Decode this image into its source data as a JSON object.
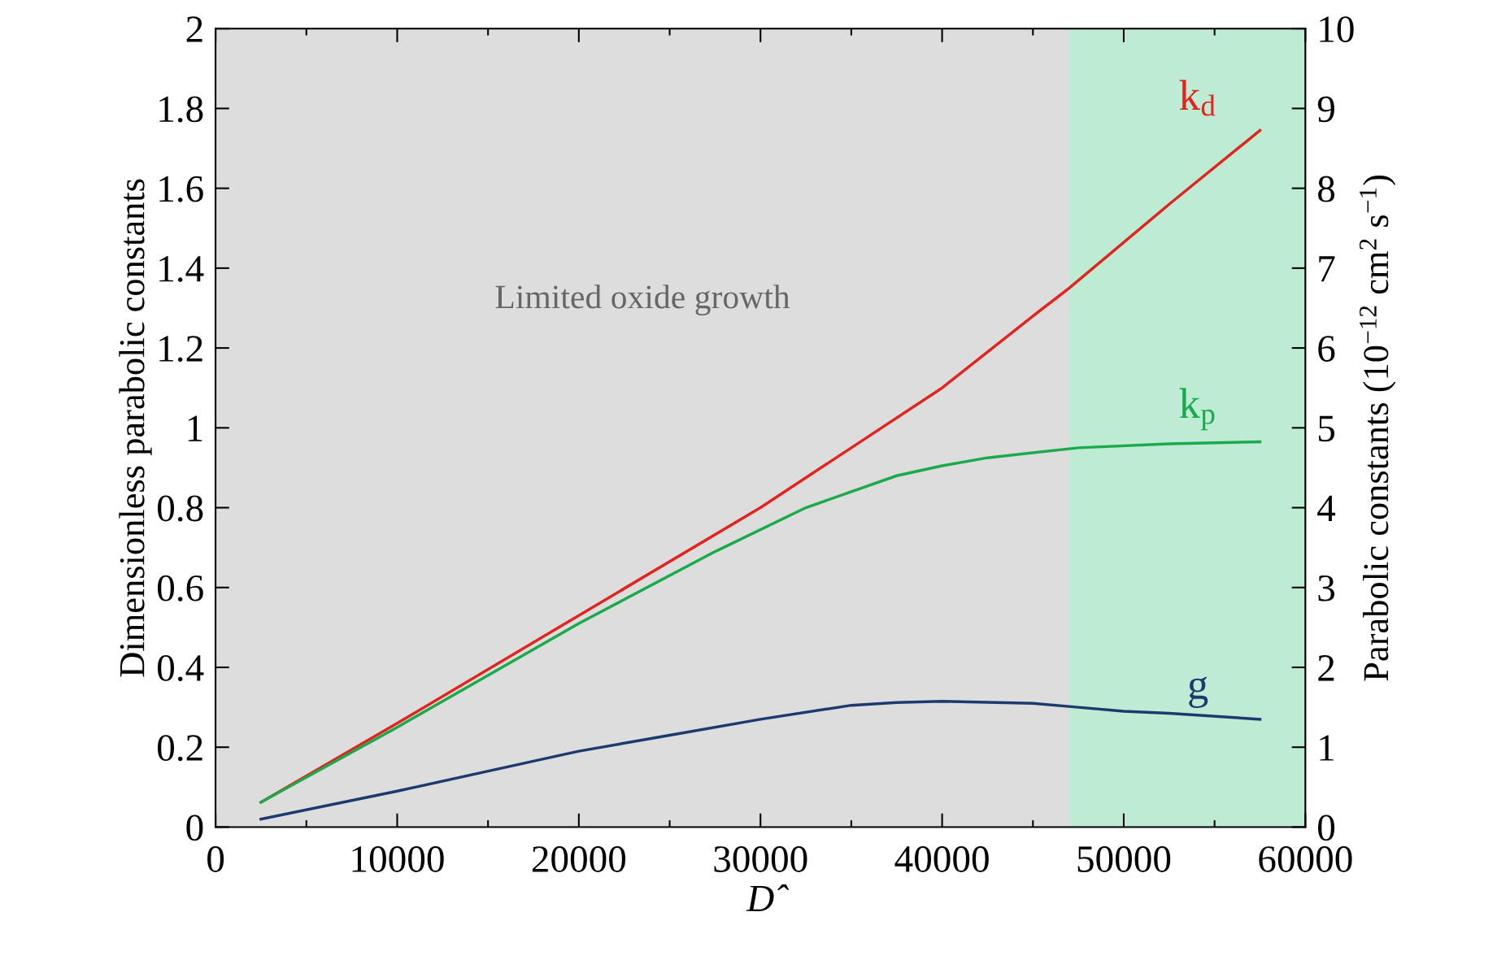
{
  "chart_data": {
    "type": "line",
    "xlabel": "D̂",
    "ylabel": "Dimensionless parabolic constants",
    "y2label": "Parabolic constants (10$^{−12}$ cm$^{2}$ s$^{−1}$)",
    "xlim": [
      0,
      60000
    ],
    "xticks": [
      0,
      10000,
      20000,
      30000,
      40000,
      50000,
      60000
    ],
    "ylim": [
      0,
      2
    ],
    "yticks": [
      0,
      0.2,
      0.4,
      0.6,
      0.8,
      1,
      1.2,
      1.4,
      1.6,
      1.8,
      2
    ],
    "y2lim": [
      0,
      10
    ],
    "y2ticks": [
      0,
      1,
      2,
      3,
      4,
      5,
      6,
      7,
      8,
      9,
      10
    ],
    "grid": false,
    "legend": false,
    "marker": "none",
    "line_style": "solid",
    "bands": [
      {
        "axis": "x",
        "from": 0,
        "to": 47000,
        "label": "Limited oxide growth",
        "color": "#dddddd"
      },
      {
        "axis": "x",
        "from": 47000,
        "to": 60000,
        "color": "#bdebd3"
      }
    ],
    "series": [
      {
        "name": "k$_{d}$",
        "color": "#e0251f",
        "x": [
          2500,
          10000,
          20000,
          30000,
          35000,
          40000,
          45000,
          47000,
          52500,
          57500
        ],
        "values": [
          0.062,
          0.26,
          0.53,
          0.8,
          0.95,
          1.1,
          1.28,
          1.35,
          1.56,
          1.745
        ]
      },
      {
        "name": "k$_{p}$",
        "color": "#1aaa4c",
        "x": [
          2500,
          10000,
          20000,
          27500,
          32500,
          37500,
          40000,
          42500,
          47500,
          52500,
          57500
        ],
        "values": [
          0.062,
          0.25,
          0.51,
          0.69,
          0.8,
          0.88,
          0.905,
          0.925,
          0.95,
          0.96,
          0.965
        ]
      },
      {
        "name": "g",
        "color": "#1d3a6e",
        "x": [
          2500,
          10000,
          17500,
          20000,
          25000,
          30000,
          35000,
          37500,
          40000,
          45000,
          47500,
          50000,
          52500,
          57500
        ],
        "values": [
          0.02,
          0.09,
          0.165,
          0.19,
          0.23,
          0.27,
          0.305,
          0.312,
          0.315,
          0.31,
          0.3,
          0.29,
          0.285,
          0.27
        ]
      }
    ]
  }
}
